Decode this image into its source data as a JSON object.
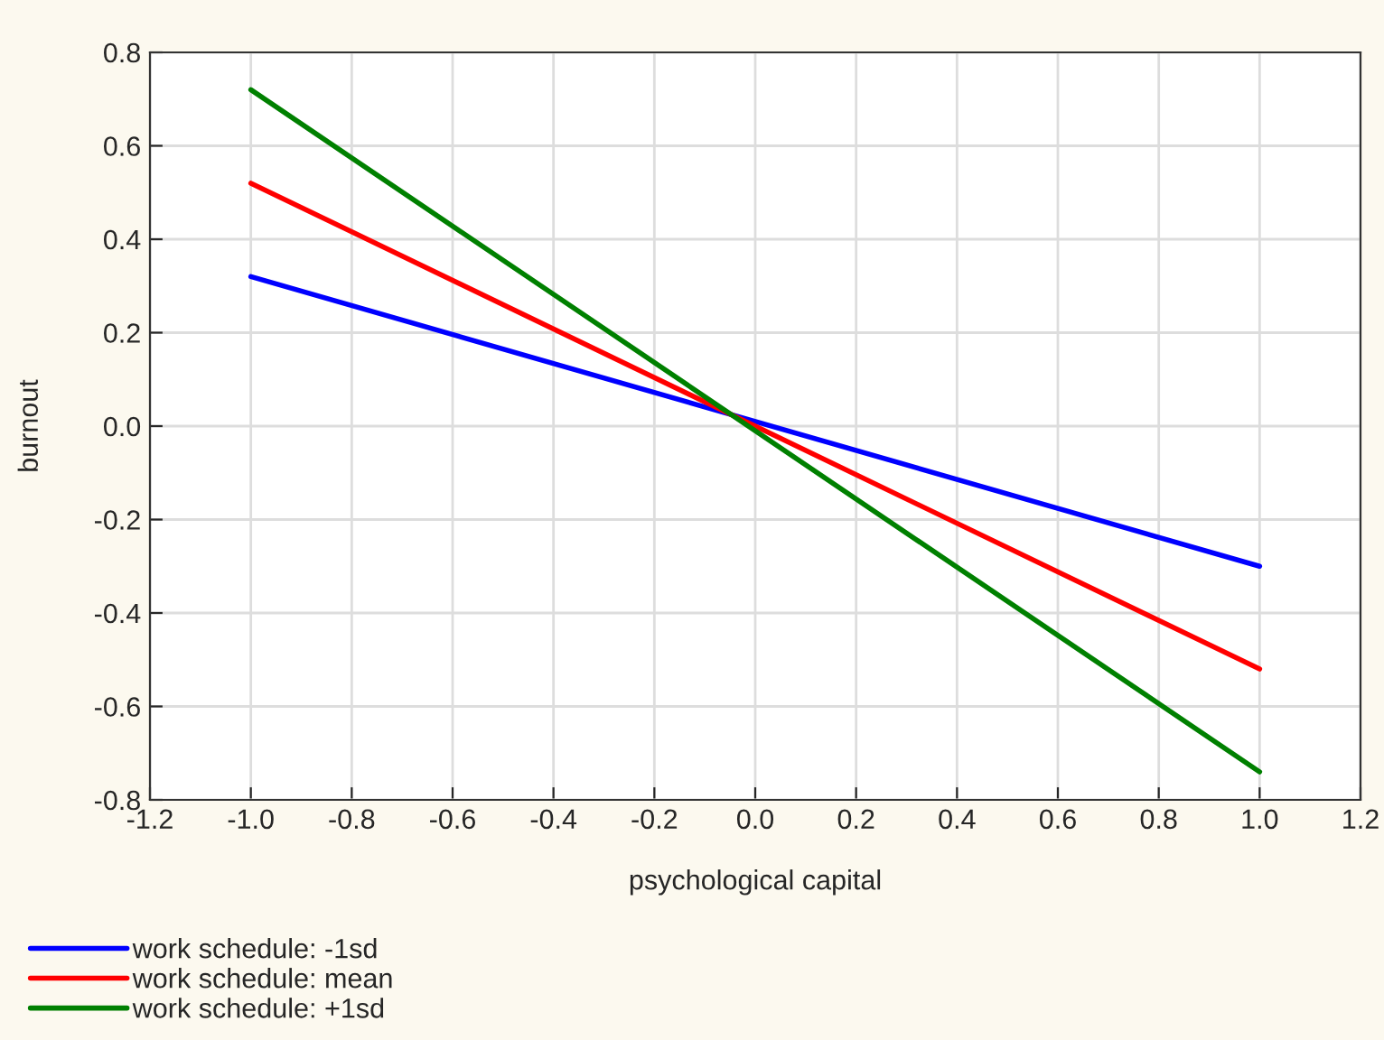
{
  "chart_data": {
    "type": "line",
    "xlabel": "psychological capital",
    "ylabel": "burnout",
    "x": [
      -1.0,
      1.0
    ],
    "series": [
      {
        "name": "work schedule: -1sd",
        "color": "#0000ff",
        "values": [
          0.32,
          -0.3
        ]
      },
      {
        "name": "work schedule: mean",
        "color": "#ff0000",
        "values": [
          0.52,
          -0.52
        ]
      },
      {
        "name": "work schedule: +1sd",
        "color": "#008000",
        "values": [
          0.72,
          -0.74
        ]
      }
    ],
    "xlim": [
      -1.2,
      1.2
    ],
    "ylim": [
      -0.8,
      0.8
    ],
    "xticks": [
      {
        "value": -1.2,
        "label": "-1.2"
      },
      {
        "value": -1.0,
        "label": "-1.0"
      },
      {
        "value": -0.8,
        "label": "-0.8"
      },
      {
        "value": -0.6,
        "label": "-0.6"
      },
      {
        "value": -0.4,
        "label": "-0.4"
      },
      {
        "value": -0.2,
        "label": "-0.2"
      },
      {
        "value": 0.0,
        "label": "0.0"
      },
      {
        "value": 0.2,
        "label": "0.2"
      },
      {
        "value": 0.4,
        "label": "0.4"
      },
      {
        "value": 0.6,
        "label": "0.6"
      },
      {
        "value": 0.8,
        "label": "0.8"
      },
      {
        "value": 1.0,
        "label": "1.0"
      },
      {
        "value": 1.2,
        "label": "1.2"
      }
    ],
    "yticks": [
      {
        "value": -0.8,
        "label": "-0.8"
      },
      {
        "value": -0.6,
        "label": "-0.6"
      },
      {
        "value": -0.4,
        "label": "-0.4"
      },
      {
        "value": -0.2,
        "label": "-0.2"
      },
      {
        "value": 0.0,
        "label": "0.0"
      },
      {
        "value": 0.2,
        "label": "0.2"
      },
      {
        "value": 0.4,
        "label": "0.4"
      },
      {
        "value": 0.6,
        "label": "0.6"
      },
      {
        "value": 0.8,
        "label": "0.8"
      }
    ],
    "grid": true,
    "legend": "bottom left",
    "marker": "none",
    "line_style": "solid"
  }
}
